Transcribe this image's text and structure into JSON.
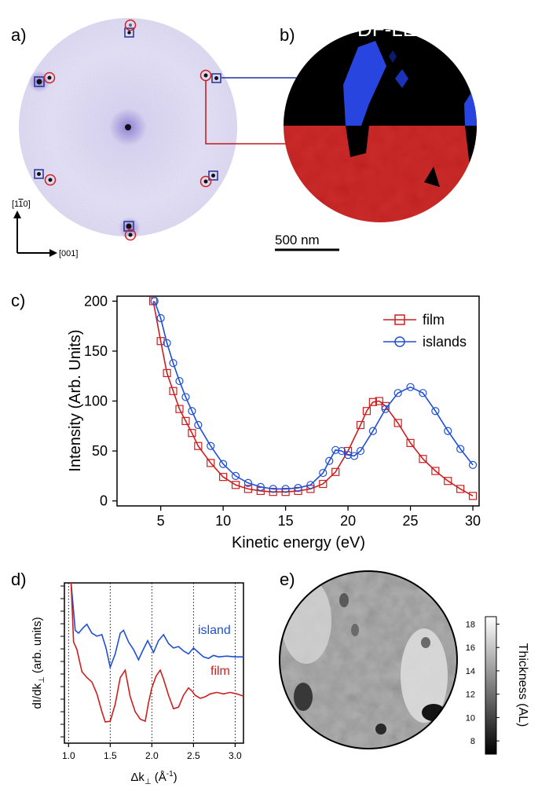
{
  "panels": {
    "a": {
      "label": "a)",
      "dir_y": "[1̅1̅0]",
      "dir_y_text": "[1",
      "dir_y_bar": "1",
      "dir_y_end": "0]",
      "dir_x": "[001]"
    },
    "b": {
      "label": "b)",
      "title": "DF-LEEM",
      "scalebar": "500 nm"
    },
    "c": {
      "label": "c)"
    },
    "d": {
      "label": "d)"
    },
    "e": {
      "label": "e)",
      "colorbar_title": "Thickness (AL)",
      "colorbar_ticks": [
        "18",
        "16",
        "14",
        "12",
        "10",
        "8"
      ]
    }
  },
  "colors": {
    "film": "#cc1f1f",
    "islands": "#1f4fd6",
    "leed_bg": "#e7e4f4",
    "leem_blue": "#2440e0",
    "leem_red": "#c81414"
  },
  "chart_data": [
    {
      "id": "c",
      "type": "line",
      "xlabel": "Kinetic energy (eV)",
      "ylabel": "Intensity (Arb. Units)",
      "xlim": [
        1.5,
        30.5
      ],
      "ylim": [
        -5,
        205
      ],
      "xticks": [
        "5",
        "10",
        "15",
        "20",
        "25",
        "30"
      ],
      "yticks": [
        "0",
        "50",
        "100",
        "150",
        "200"
      ],
      "legend": "top-right",
      "series": [
        {
          "name": "film",
          "marker": "square",
          "x": [
            4.4,
            5,
            5.5,
            6,
            6.5,
            7,
            7.5,
            8,
            9,
            10,
            11,
            12,
            13,
            14,
            15,
            16,
            17,
            18,
            19,
            20,
            21,
            21.5,
            22,
            22.5,
            23,
            24,
            25,
            26,
            27,
            28,
            29,
            30
          ],
          "y": [
            200,
            160,
            128,
            110,
            92,
            80,
            68,
            55,
            38,
            24,
            16,
            12,
            10,
            9,
            9,
            10,
            12,
            17,
            29,
            50,
            76,
            90,
            99,
            100,
            95,
            78,
            58,
            42,
            30,
            20,
            12,
            5
          ]
        },
        {
          "name": "islands",
          "marker": "circle",
          "x": [
            4.5,
            5,
            5.5,
            6,
            6.5,
            7,
            7.5,
            8,
            9,
            10,
            11,
            12,
            13,
            14,
            15,
            16,
            17,
            18,
            18.5,
            19,
            19.5,
            20,
            20.5,
            21,
            22,
            23,
            24,
            25,
            26,
            27,
            28,
            29,
            30
          ],
          "y": [
            200,
            183,
            158,
            138,
            120,
            104,
            90,
            76,
            55,
            37,
            25,
            18,
            14,
            12,
            12,
            13,
            16,
            28,
            40,
            51,
            50,
            46,
            45,
            50,
            70,
            92,
            108,
            114,
            108,
            90,
            70,
            52,
            36
          ]
        }
      ]
    },
    {
      "id": "d",
      "type": "line",
      "xlabel": "Δk⊥ (Å⁻¹)",
      "ylabel": "dI/dk⊥ (arb. units)",
      "xlim": [
        0.95,
        3.1
      ],
      "xticks": [
        "1.0",
        "1.5",
        "2.0",
        "2.5",
        "3.0"
      ],
      "series": [
        {
          "name": "island",
          "x": [
            1.03,
            1.08,
            1.12,
            1.18,
            1.22,
            1.28,
            1.34,
            1.4,
            1.45,
            1.5,
            1.56,
            1.62,
            1.66,
            1.72,
            1.78,
            1.84,
            1.88,
            1.95,
            2.02,
            2.08,
            2.14,
            2.2,
            2.26,
            2.32,
            2.38,
            2.44,
            2.5,
            2.56,
            2.62,
            2.68,
            2.74,
            2.8,
            2.9,
            3.0,
            3.1
          ],
          "y": [
            10.3,
            7.1,
            6.9,
            7.3,
            7.5,
            6.9,
            6.7,
            6.8,
            5.9,
            4.6,
            5.5,
            6.9,
            7.1,
            6.3,
            5.8,
            5.1,
            5.6,
            6.4,
            5.6,
            6.4,
            6.8,
            6.2,
            5.9,
            6.0,
            5.7,
            5.5,
            5.9,
            5.6,
            5.3,
            5.2,
            5.4,
            5.3,
            5.35,
            5.3,
            5.3
          ]
        },
        {
          "name": "film",
          "x": [
            1.03,
            1.06,
            1.1,
            1.16,
            1.22,
            1.28,
            1.34,
            1.4,
            1.44,
            1.5,
            1.56,
            1.62,
            1.68,
            1.74,
            1.8,
            1.86,
            1.92,
            1.96,
            2.0,
            2.05,
            2.1,
            2.14,
            2.2,
            2.26,
            2.32,
            2.38,
            2.44,
            2.48,
            2.52,
            2.58,
            2.64,
            2.7,
            2.78,
            2.86,
            2.94,
            3.02,
            3.1
          ],
          "y": [
            10.3,
            6.3,
            5.8,
            4.3,
            3.9,
            3.6,
            2.8,
            1.6,
            0.9,
            0.95,
            2.1,
            3.9,
            4.4,
            2.6,
            1.6,
            1.1,
            0.95,
            2.2,
            3.2,
            4.0,
            4.4,
            3.8,
            2.7,
            1.8,
            1.9,
            2.7,
            3.2,
            3.0,
            2.7,
            2.5,
            2.6,
            2.8,
            2.9,
            2.8,
            2.9,
            2.8,
            2.65
          ]
        }
      ]
    }
  ]
}
